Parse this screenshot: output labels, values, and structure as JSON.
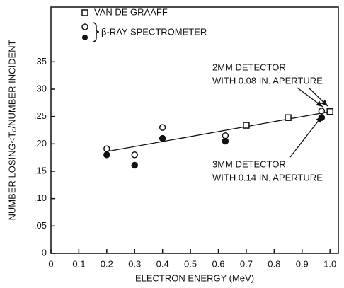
{
  "chart_data": {
    "type": "scatter",
    "x_label": "ELECTRON ENERGY (MeV)",
    "y_label": "NUMBER LOSING<T₀/NUMBER INCIDENT",
    "xlim": [
      0,
      1.03
    ],
    "ylim": [
      0,
      0.45
    ],
    "xticks": [
      0,
      0.1,
      0.2,
      0.3,
      0.4,
      0.5,
      0.6,
      0.7,
      0.8,
      0.9,
      {
        "value": 1,
        "label": "1.0"
      }
    ],
    "yticks": [
      0,
      {
        "value": 0.05,
        "label": ".05"
      },
      {
        "value": 0.1,
        "label": ".10"
      },
      {
        "value": 0.15,
        "label": ".15"
      },
      {
        "value": 0.2,
        "label": ".20"
      },
      {
        "value": 0.25,
        "label": ".25"
      },
      {
        "value": 0.3,
        "label": ".30"
      },
      {
        "value": 0.35,
        "label": ".35"
      }
    ],
    "series": [
      {
        "name": "VAN DE GRAAFF",
        "color": "#111111",
        "marker": "square",
        "filled": false,
        "x": [
          0.7,
          0.85,
          1.0
        ],
        "values": [
          0.234,
          0.248,
          0.259
        ]
      },
      {
        "name": "β-RAY SPECTROMETER",
        "color": "#111111",
        "marker": "circle",
        "filled": false,
        "x": [
          0.2,
          0.3,
          0.4,
          0.625,
          0.97
        ],
        "values": [
          0.191,
          0.18,
          0.23,
          0.215,
          0.26
        ]
      },
      {
        "color": "#111111",
        "marker": "circle",
        "filled": true,
        "x": [
          0.2,
          0.3,
          0.4,
          0.625,
          0.97
        ],
        "values": [
          0.18,
          0.161,
          0.21,
          0.205,
          0.248
        ]
      }
    ],
    "fit_line": {
      "x": [
        0.2,
        1.0
      ],
      "values": [
        0.186,
        0.259
      ]
    },
    "annotations": [
      "2MM DETECTOR",
      "WITH 0.08 IN. APERTURE",
      "3MM DETECTOR",
      "WITH 0.14 IN. APERTURE"
    ]
  }
}
